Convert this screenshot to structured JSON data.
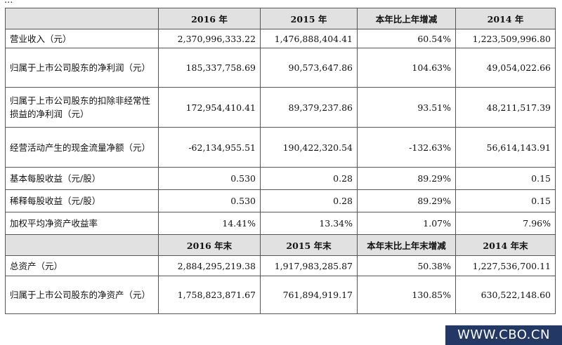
{
  "top_fragment": "...",
  "header1": [
    "",
    "2016 年",
    "2015 年",
    "本年比上年增减",
    "2014 年"
  ],
  "rows1": [
    {
      "label": "营业收入（元）",
      "values": [
        "2,370,996,333.22",
        "1,476,888,404.41",
        "60.54%",
        "1,223,509,996.80"
      ]
    },
    {
      "label": "归属于上市公司股东的净利润（元）",
      "values": [
        "185,337,758.69",
        "90,573,647.86",
        "104.63%",
        "49,054,022.66"
      ]
    },
    {
      "label": "归属于上市公司股东的扣除非经常性损益的净利润（元）",
      "values": [
        "172,954,410.41",
        "89,379,237.86",
        "93.51%",
        "48,211,517.39"
      ]
    },
    {
      "label": "经营活动产生的现金流量净额（元）",
      "values": [
        "-62,134,955.51",
        "190,422,320.54",
        "-132.63%",
        "56,614,143.91"
      ]
    },
    {
      "label": "基本每股收益（元/股）",
      "values": [
        "0.530",
        "0.28",
        "89.29%",
        "0.15"
      ]
    },
    {
      "label": "稀释每股收益（元/股）",
      "values": [
        "0.530",
        "0.28",
        "89.29%",
        "0.15"
      ]
    },
    {
      "label": "加权平均净资产收益率",
      "values": [
        "14.41%",
        "13.34%",
        "1.07%",
        "7.96%"
      ]
    }
  ],
  "header2": [
    "",
    "2016 年末",
    "2015 年末",
    "本年末比上年末增减",
    "2014 年末"
  ],
  "rows2": [
    {
      "label": "总资产（元）",
      "values": [
        "2,884,295,219.38",
        "1,917,983,285.87",
        "50.38%",
        "1,227,536,700.11"
      ]
    },
    {
      "label": "归属于上市公司股东的净资产（元）",
      "values": [
        "1,758,823,871.67",
        "761,894,919.17",
        "130.85%",
        "630,522,148.60"
      ]
    }
  ],
  "watermark": "WWW.CBO.CN"
}
